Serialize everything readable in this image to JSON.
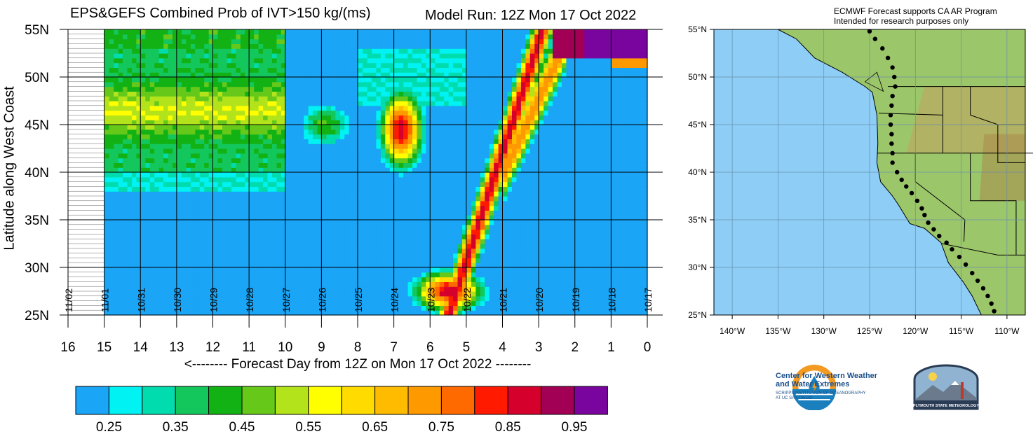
{
  "header": {
    "title": "EPS&GEFS Combined Prob of IVT>150 kg/(ms)",
    "model_run": "Model Run: 12Z Mon 17 Oct 2022"
  },
  "chart_data": {
    "type": "heatmap",
    "title": "EPS&GEFS Combined Prob of IVT>150 kg/(ms)",
    "xlabel": "<-------- Forecast Day from 12Z on Mon 17 Oct 2022 --------",
    "ylabel": "Latitude along West Coast",
    "xlim": [
      16,
      0
    ],
    "ylim": [
      25,
      55
    ],
    "x_ticks": [
      "16",
      "15",
      "14",
      "13",
      "12",
      "11",
      "10",
      "9",
      "8",
      "7",
      "6",
      "5",
      "4",
      "3",
      "2",
      "1",
      "0"
    ],
    "y_ticks": [
      "55N",
      "50N",
      "45N",
      "40N",
      "35N",
      "30N",
      "25N"
    ],
    "date_labels": [
      "11/02",
      "11/01",
      "10/31",
      "10/30",
      "10/29",
      "10/28",
      "10/27",
      "10/26",
      "10/25",
      "10/24",
      "10/23",
      "10/22",
      "10/21",
      "10/20",
      "10/19",
      "10/18",
      "10/17"
    ],
    "colorbar": {
      "tick_labels": [
        "0.25",
        "0.35",
        "0.45",
        "0.55",
        "0.65",
        "0.75",
        "0.85",
        "0.95"
      ],
      "colors": [
        "#1aa5f6",
        "#00f2f2",
        "#00dcad",
        "#13c75d",
        "#13b214",
        "#66c91a",
        "#b3e31a",
        "#ffff00",
        "#ffdb00",
        "#ffbb00",
        "#ff9900",
        "#ff6a00",
        "#ff1a00",
        "#d6002d",
        "#a10055",
        "#7a049e"
      ]
    },
    "features": [
      {
        "name": "persistent band",
        "lon_days": [
          10,
          15
        ],
        "lat": [
          40,
          54
        ],
        "peak_prob": 0.55
      },
      {
        "name": "AR day 7",
        "day_center": 6.8,
        "lat_center": 44.5,
        "peak_prob": 0.85
      },
      {
        "name": "AR day 4.5 band",
        "from": [
          5.5,
          25
        ],
        "to": [
          3,
          55
        ],
        "peak_prob": 0.9
      },
      {
        "name": "south AR day 5.5",
        "day_center": 5.5,
        "lat_center": 27.5,
        "peak_prob": 0.85
      },
      {
        "name": "northwest day 0-3",
        "day_range": [
          0,
          2.6
        ],
        "lat_range": [
          52,
          55
        ],
        "peak_prob": 0.98
      }
    ]
  },
  "map": {
    "note_line1": "ECMWF Forecast supports CA AR Program",
    "note_line2": "Intended for research purposes only",
    "lat_labels": [
      "55°N",
      "50°N",
      "45°N",
      "40°N",
      "35°N",
      "30°N",
      "25°N"
    ],
    "lon_labels": [
      "140°W",
      "135°W",
      "130°W",
      "125°W",
      "120°W",
      "115°W",
      "110°W"
    ]
  },
  "logos": {
    "cw3e_line1": "Center for Western Weather",
    "cw3e_line2": "and Water Extremes",
    "cw3e_sub1": "SCRIPPS INSTITUTION OF OCEANOGRAPHY",
    "cw3e_sub2": "AT UC SAN DIEGO",
    "psu": "PLYMOUTH STATE METEOROLOGY"
  }
}
